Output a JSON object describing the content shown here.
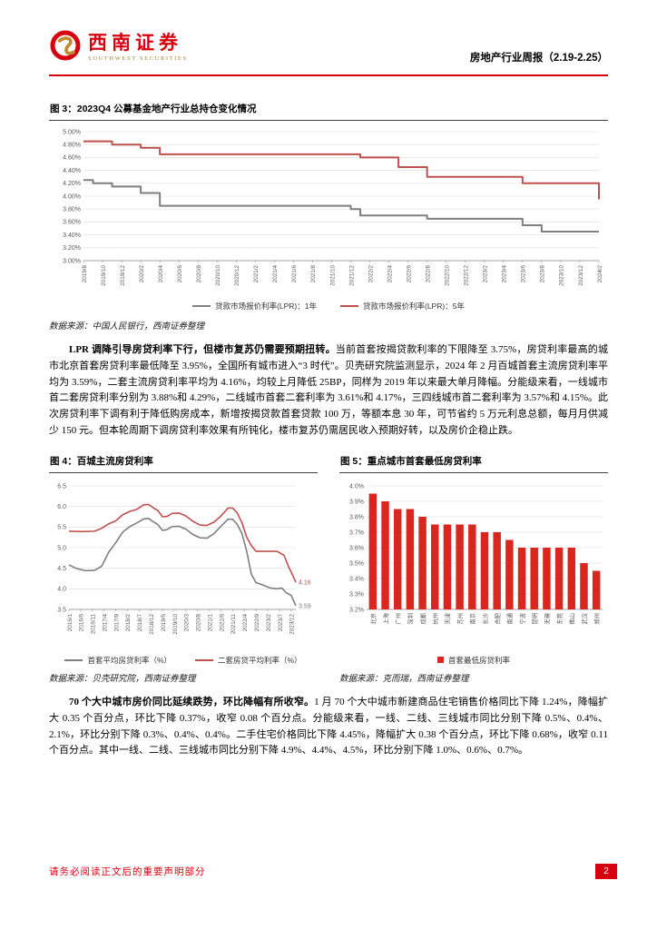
{
  "header": {
    "logo_cn": "西南证券",
    "logo_en": "SOUTHWEST SECURITIES",
    "report_title": "房地产行业周报（2.19-2.25）"
  },
  "colors": {
    "accent_red": "#d7000f",
    "series_gray": "#7f7f7f",
    "series_red": "#c0504d",
    "bar_red": "#d9261f"
  },
  "figures": {
    "fig3": {
      "title": "图 3：2023Q4 公募基金地产行业总持仓变化情况",
      "source": "数据来源：中国人民银行，西南证券整理"
    },
    "fig4": {
      "title": "图 4：百城主流房贷利率",
      "source": "数据来源：贝壳研究院，西南证券整理"
    },
    "fig5": {
      "title": "图 5：重点城市首套最低房贷利率",
      "source": "数据来源：克而瑞，西南证券整理"
    }
  },
  "paragraphs": [
    {
      "lead": "LPR 调降引导房贷利率下行，但楼市复苏仍需要预期扭转。",
      "body": "当前首套按揭贷款利率的下限降至 3.75%，房贷利率最高的城市北京首套房贷利率最低降至 3.95%，全国所有城市进入“3 时代”。贝壳研究院监测显示，2024 年 2 月百城首套主流房贷利率平均为 3.59%，二套主流房贷利率平均为 4.16%，均较上月降低 25BP，同样为 2019 年以来最大单月降幅。分能级来看，一线城市首二套房贷利率分别为 3.88%和 4.29%，二线城市首套二套利率为 3.61%和 4.17%，三四线城市首二套利率为 3.57%和 4.15%。此次房贷利率下调有利于降低购房成本，新增按揭贷款首套贷款 100 万，等额本息 30 年，可节省约 5 万元利息总额，每月月供减少 150 元。但本轮周期下调房贷利率效果有所钝化，楼市复苏仍需居民收入预期好转，以及房价企稳止跌。"
    },
    {
      "lead": "70 个大中城市房价同比延续跌势，环比降幅有所收窄。",
      "body": "1 月 70 个大中城市新建商品住宅销售价格同比下降 1.24%，降幅扩大 0.35 个百分点，环比下降 0.37%，收窄 0.08 个百分点。分能级来看，一线、二线、三线城市同比分别下降 0.5%、0.4%、2.1%，环比分别下降 0.3%、0.4%、0.4%。二手住宅价格同比下降 4.45%，降幅扩大 0.38 个百分点，环比下降 0.68%，收窄 0.11 个百分点。其中一线、二线、三线城市同比分别下降 4.9%、4.4%、4.5%，环比分别下降 1.0%、0.6%、0.7%。"
    }
  ],
  "footer": {
    "disclaimer": "请务必阅读正文后的重要声明部分",
    "page_number": "2"
  },
  "chart_data": [
    {
      "id": "fig3",
      "type": "line",
      "line_style": "step",
      "title": "贷款市场报价利率（LPR）走势",
      "ylim": [
        3.0,
        5.0
      ],
      "y_step": 0.2,
      "y_tick_format": "pct2",
      "x_range": [
        "2019/8",
        "2024/2"
      ],
      "x_ticks": [
        "2019/8",
        "2019/10",
        "2019/12",
        "2020/2",
        "2020/4",
        "2020/6",
        "2020/8",
        "2020/10",
        "2020/12",
        "2021/2",
        "2021/4",
        "2021/6",
        "2021/8",
        "2021/10",
        "2021/12",
        "2022/2",
        "2022/4",
        "2022/6",
        "2022/8",
        "2022/10",
        "2022/12",
        "2023/2",
        "2023/4",
        "2023/6",
        "2023/8",
        "2023/10",
        "2023/12",
        "2024/2"
      ],
      "series": [
        {
          "name": "贷款市场报价利率(LPR)：1年",
          "color_key": "series_gray",
          "points": [
            [
              "2019/8",
              4.25
            ],
            [
              "2019/9",
              4.2
            ],
            [
              "2019/11",
              4.15
            ],
            [
              "2020/2",
              4.05
            ],
            [
              "2020/4",
              3.85
            ],
            [
              "2021/12",
              3.8
            ],
            [
              "2022/1",
              3.7
            ],
            [
              "2022/8",
              3.65
            ],
            [
              "2023/6",
              3.55
            ],
            [
              "2023/8",
              3.45
            ]
          ]
        },
        {
          "name": "贷款市场报价利率(LPR)：5年",
          "color_key": "series_red",
          "points": [
            [
              "2019/8",
              4.85
            ],
            [
              "2019/11",
              4.8
            ],
            [
              "2020/2",
              4.75
            ],
            [
              "2020/4",
              4.65
            ],
            [
              "2022/1",
              4.6
            ],
            [
              "2022/5",
              4.45
            ],
            [
              "2022/8",
              4.3
            ],
            [
              "2023/6",
              4.2
            ],
            [
              "2024/2",
              3.95
            ]
          ]
        }
      ],
      "legend_position": "bottom",
      "grid": true
    },
    {
      "id": "fig4",
      "type": "line",
      "line_style": "linear",
      "title": "百城主流房贷利率",
      "ylim": [
        3.5,
        6.5
      ],
      "y_step": 0.5,
      "y_tick_format": "num1",
      "x_range": [
        "2016/1",
        "2024/2"
      ],
      "x_ticks": [
        "2016/1",
        "2016/6",
        "2016/11",
        "2017/4",
        "2017/9",
        "2018/2",
        "2018/7",
        "2018/12",
        "2019/5",
        "2019/10",
        "2020/3",
        "2020/8",
        "2021/1",
        "2021/6",
        "2021/11",
        "2022/4",
        "2022/9",
        "2023/2",
        "2023/7",
        "2023/12"
      ],
      "series": [
        {
          "name": "首套平均房贷利率（%）",
          "color_key": "series_gray",
          "end_label": "3.59",
          "points": [
            [
              "2016/1",
              4.58
            ],
            [
              "2016/4",
              4.5
            ],
            [
              "2016/8",
              4.44
            ],
            [
              "2016/12",
              4.45
            ],
            [
              "2017/3",
              4.55
            ],
            [
              "2017/6",
              4.89
            ],
            [
              "2017/9",
              5.12
            ],
            [
              "2017/12",
              5.38
            ],
            [
              "2018/3",
              5.51
            ],
            [
              "2018/6",
              5.6
            ],
            [
              "2018/9",
              5.7
            ],
            [
              "2018/11",
              5.71
            ],
            [
              "2019/1",
              5.63
            ],
            [
              "2019/3",
              5.56
            ],
            [
              "2019/5",
              5.42
            ],
            [
              "2019/7",
              5.44
            ],
            [
              "2019/9",
              5.51
            ],
            [
              "2019/12",
              5.52
            ],
            [
              "2020/3",
              5.45
            ],
            [
              "2020/6",
              5.32
            ],
            [
              "2020/9",
              5.24
            ],
            [
              "2020/12",
              5.23
            ],
            [
              "2021/3",
              5.34
            ],
            [
              "2021/6",
              5.52
            ],
            [
              "2021/9",
              5.69
            ],
            [
              "2021/11",
              5.69
            ],
            [
              "2022/1",
              5.56
            ],
            [
              "2022/3",
              5.34
            ],
            [
              "2022/5",
              4.91
            ],
            [
              "2022/7",
              4.35
            ],
            [
              "2022/9",
              4.15
            ],
            [
              "2022/12",
              4.09
            ],
            [
              "2023/3",
              4.02
            ],
            [
              "2023/6",
              4.0
            ],
            [
              "2023/8",
              4.02
            ],
            [
              "2023/10",
              3.9
            ],
            [
              "2023/12",
              3.84
            ],
            [
              "2024/2",
              3.59
            ]
          ]
        },
        {
          "name": "二套房贷平均利率（%）",
          "color_key": "series_red",
          "end_label": "4.16",
          "points": [
            [
              "2016/1",
              5.4
            ],
            [
              "2016/6",
              5.39
            ],
            [
              "2016/12",
              5.4
            ],
            [
              "2017/3",
              5.47
            ],
            [
              "2017/6",
              5.58
            ],
            [
              "2017/9",
              5.65
            ],
            [
              "2017/12",
              5.8
            ],
            [
              "2018/3",
              5.88
            ],
            [
              "2018/6",
              5.93
            ],
            [
              "2018/9",
              6.04
            ],
            [
              "2018/11",
              6.05
            ],
            [
              "2019/1",
              5.97
            ],
            [
              "2019/3",
              5.9
            ],
            [
              "2019/5",
              5.75
            ],
            [
              "2019/7",
              5.76
            ],
            [
              "2019/9",
              5.83
            ],
            [
              "2019/12",
              5.84
            ],
            [
              "2020/3",
              5.77
            ],
            [
              "2020/6",
              5.64
            ],
            [
              "2020/9",
              5.55
            ],
            [
              "2020/12",
              5.54
            ],
            [
              "2021/3",
              5.62
            ],
            [
              "2021/6",
              5.77
            ],
            [
              "2021/9",
              5.96
            ],
            [
              "2021/11",
              5.96
            ],
            [
              "2022/1",
              5.84
            ],
            [
              "2022/3",
              5.6
            ],
            [
              "2022/5",
              5.25
            ],
            [
              "2022/7",
              5.05
            ],
            [
              "2022/9",
              4.91
            ],
            [
              "2022/12",
              4.91
            ],
            [
              "2023/6",
              4.91
            ],
            [
              "2023/9",
              4.81
            ],
            [
              "2023/11",
              4.52
            ],
            [
              "2023/12",
              4.41
            ],
            [
              "2024/2",
              4.16
            ]
          ]
        }
      ],
      "legend_position": "bottom",
      "grid": true
    },
    {
      "id": "fig5",
      "type": "bar",
      "title": "重点城市首套最低房贷利率",
      "ylim": [
        3.2,
        4.0
      ],
      "y_step": 0.1,
      "y_tick_format": "pct1",
      "bar_color_key": "bar_red",
      "legend_label": "首套最低房贷利率",
      "categories": [
        "北京",
        "上海",
        "广州",
        "深圳",
        "成都",
        "杭州",
        "天津",
        "苏州",
        "南京",
        "长沙",
        "合肥",
        "南通",
        "宁波",
        "昆明",
        "无锡",
        "东莞",
        "佛山",
        "武汉",
        "郑州"
      ],
      "values": [
        3.95,
        3.9,
        3.85,
        3.85,
        3.8,
        3.75,
        3.75,
        3.75,
        3.75,
        3.7,
        3.7,
        3.65,
        3.6,
        3.6,
        3.6,
        3.6,
        3.6,
        3.5,
        3.45
      ],
      "legend_position": "bottom",
      "grid": true
    }
  ]
}
